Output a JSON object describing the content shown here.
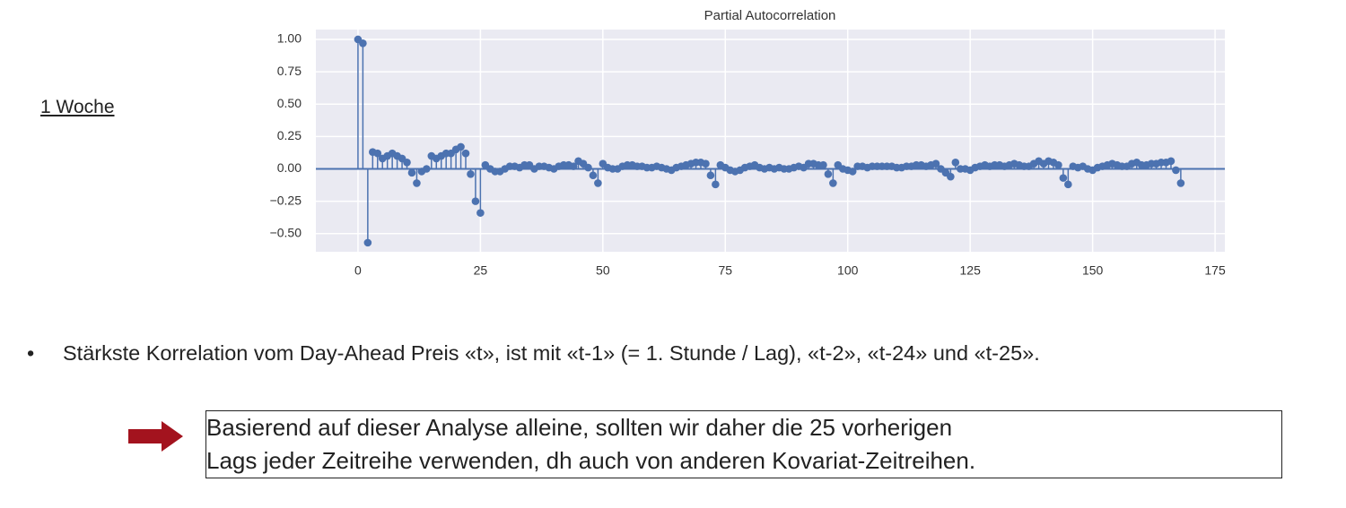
{
  "chart_data": {
    "type": "stem",
    "title": "Partial Autocorrelation",
    "color": "#4c72b0",
    "background": "#eaeaf2",
    "grid": true,
    "xlim": [
      -8.6,
      177
    ],
    "ylim": [
      -0.64,
      1.076
    ],
    "xticks": [
      0,
      25,
      50,
      75,
      100,
      125,
      150,
      175
    ],
    "yticks": [
      {
        "value": 1.0,
        "label": "1.00"
      },
      {
        "value": 0.75,
        "label": "0.75"
      },
      {
        "value": 0.5,
        "label": "0.50"
      },
      {
        "value": 0.25,
        "label": "0.25"
      },
      {
        "value": 0.0,
        "label": "0.00"
      },
      {
        "value": -0.25,
        "label": "−0.25"
      },
      {
        "value": -0.5,
        "label": "−0.50"
      }
    ],
    "x": [
      0,
      1,
      2,
      3,
      4,
      5,
      6,
      7,
      8,
      9,
      10,
      11,
      12,
      13,
      14,
      15,
      16,
      17,
      18,
      19,
      20,
      21,
      22,
      23,
      24,
      25,
      26,
      27,
      28,
      29,
      30,
      31,
      32,
      33,
      34,
      35,
      36,
      37,
      38,
      39,
      40,
      41,
      42,
      43,
      44,
      45,
      46,
      47,
      48,
      49,
      50,
      51,
      52,
      53,
      54,
      55,
      56,
      57,
      58,
      59,
      60,
      61,
      62,
      63,
      64,
      65,
      66,
      67,
      68,
      69,
      70,
      71,
      72,
      73,
      74,
      75,
      76,
      77,
      78,
      79,
      80,
      81,
      82,
      83,
      84,
      85,
      86,
      87,
      88,
      89,
      90,
      91,
      92,
      93,
      94,
      95,
      96,
      97,
      98,
      99,
      100,
      101,
      102,
      103,
      104,
      105,
      106,
      107,
      108,
      109,
      110,
      111,
      112,
      113,
      114,
      115,
      116,
      117,
      118,
      119,
      120,
      121,
      122,
      123,
      124,
      125,
      126,
      127,
      128,
      129,
      130,
      131,
      132,
      133,
      134,
      135,
      136,
      137,
      138,
      139,
      140,
      141,
      142,
      143,
      144,
      145,
      146,
      147,
      148,
      149,
      150,
      151,
      152,
      153,
      154,
      155,
      156,
      157,
      158,
      159,
      160,
      161,
      162,
      163,
      164,
      165,
      166,
      167,
      168
    ],
    "values": [
      1.0,
      0.97,
      -0.57,
      0.13,
      0.12,
      0.08,
      0.1,
      0.12,
      0.1,
      0.08,
      0.05,
      -0.03,
      -0.11,
      -0.02,
      0.0,
      0.1,
      0.08,
      0.1,
      0.12,
      0.12,
      0.15,
      0.17,
      0.12,
      -0.04,
      -0.25,
      -0.34,
      0.03,
      0.0,
      -0.02,
      -0.02,
      0.0,
      0.02,
      0.02,
      0.01,
      0.03,
      0.03,
      0.0,
      0.02,
      0.02,
      0.01,
      0.0,
      0.02,
      0.03,
      0.03,
      0.02,
      0.06,
      0.04,
      0.01,
      -0.05,
      -0.11,
      0.04,
      0.01,
      0.0,
      0.0,
      0.02,
      0.03,
      0.03,
      0.02,
      0.02,
      0.01,
      0.01,
      0.02,
      0.01,
      0.0,
      -0.01,
      0.01,
      0.02,
      0.03,
      0.04,
      0.05,
      0.05,
      0.04,
      -0.05,
      -0.12,
      0.03,
      0.01,
      -0.01,
      -0.02,
      -0.01,
      0.01,
      0.02,
      0.03,
      0.01,
      0.0,
      0.01,
      0.0,
      0.01,
      0.0,
      0.0,
      0.01,
      0.02,
      0.01,
      0.04,
      0.04,
      0.03,
      0.03,
      -0.04,
      -0.11,
      0.03,
      0.0,
      -0.01,
      -0.02,
      0.02,
      0.02,
      0.01,
      0.02,
      0.02,
      0.02,
      0.02,
      0.02,
      0.01,
      0.01,
      0.02,
      0.02,
      0.03,
      0.03,
      0.02,
      0.03,
      0.04,
      0.0,
      -0.03,
      -0.06,
      0.05,
      0.0,
      0.0,
      -0.01,
      0.01,
      0.02,
      0.03,
      0.02,
      0.03,
      0.03,
      0.02,
      0.03,
      0.04,
      0.03,
      0.02,
      0.02,
      0.04,
      0.06,
      0.04,
      0.06,
      0.05,
      0.03,
      -0.07,
      -0.12,
      0.02,
      0.01,
      0.02,
      0.0,
      -0.01,
      0.01,
      0.02,
      0.03,
      0.04,
      0.03,
      0.02,
      0.02,
      0.04,
      0.05,
      0.03,
      0.03,
      0.04,
      0.04,
      0.05,
      0.05,
      0.06,
      -0.01,
      -0.11
    ]
  },
  "side_label": "1 Woche",
  "bullet": "Stärkste Korrelation vom Day-Ahead Preis «t», ist mit «t-1» (= 1. Stunde / Lag), «t-2», «t-24» und «t-25».",
  "note_lines": [
    "Basierend auf dieser Analyse alleine, sollten wir daher die 25 vorherigen",
    "Lags jeder Zeitreihe verwenden, dh auch von anderen Kovariat-Zeitreihen."
  ]
}
